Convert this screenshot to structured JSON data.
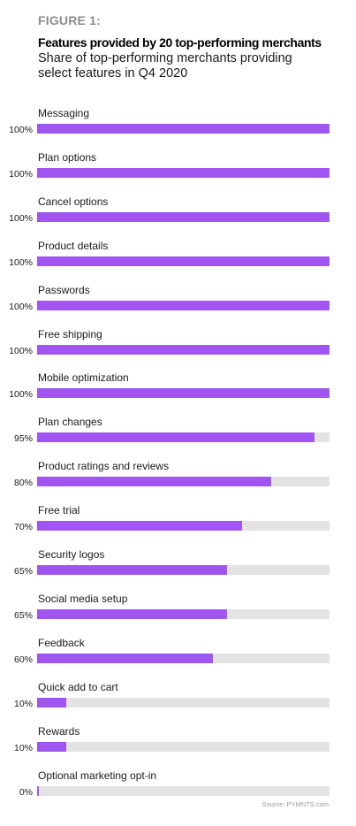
{
  "figure_label": "FIGURE 1:",
  "title": "Features provided by 20 top-performing merchants",
  "subtitle": "Share of top-performing merchants providing select features in Q4 2020",
  "source": "Source: PYMNTS.com",
  "colors": {
    "bar": "#a155f0",
    "track": "#e3e3e3",
    "figure_label": "#8c8c8c"
  },
  "chart_data": {
    "type": "bar",
    "orientation": "horizontal",
    "categories": [
      "Messaging",
      "Plan options",
      "Cancel options",
      "Product details",
      "Passwords",
      "Free shipping",
      "Mobile optimization",
      "Plan changes",
      "Product ratings and reviews",
      "Free trial",
      "Security logos",
      "Social media setup",
      "Feedback",
      "Quick add to cart",
      "Rewards",
      "Optional marketing opt-in"
    ],
    "values": [
      100,
      100,
      100,
      100,
      100,
      100,
      100,
      95,
      80,
      70,
      65,
      65,
      60,
      10,
      10,
      0
    ],
    "value_labels": [
      "100%",
      "100%",
      "100%",
      "100%",
      "100%",
      "100%",
      "100%",
      "95%",
      "80%",
      "70%",
      "65%",
      "65%",
      "60%",
      "10%",
      "10%",
      "0%"
    ],
    "xlim": [
      0,
      100
    ],
    "grid": false,
    "legend": "none"
  }
}
